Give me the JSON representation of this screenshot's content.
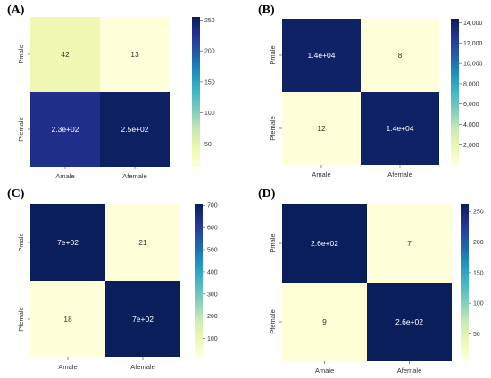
{
  "panels": [
    {
      "label": "(A)"
    },
    {
      "label": "(B)"
    },
    {
      "label": "(C)"
    },
    {
      "label": "(D)"
    }
  ],
  "colormap": {
    "name": "YlGnBu",
    "stops": [
      "#ffffd9",
      "#edf8b1",
      "#c7e9b4",
      "#7fcdbb",
      "#41b6c4",
      "#1d91c0",
      "#225ea8",
      "#253494",
      "#081d58"
    ]
  },
  "chart_data": [
    {
      "type": "heatmap",
      "panel": "(A)",
      "x_categories": [
        "Amale",
        "Afemale"
      ],
      "y_categories": [
        "Pmale",
        "Pfemale"
      ],
      "values": [
        [
          42,
          13
        ],
        [
          230,
          250
        ]
      ],
      "cell_labels": [
        [
          "42",
          "13"
        ],
        [
          "2.3e+02",
          "2.5e+02"
        ]
      ],
      "colorbar": {
        "min": 13,
        "max": 255,
        "ticks": [
          50,
          100,
          150,
          200,
          250
        ],
        "tick_labels": [
          "50",
          "100",
          "150",
          "200",
          "250"
        ]
      }
    },
    {
      "type": "heatmap",
      "panel": "(B)",
      "x_categories": [
        "Amale",
        "Afemale"
      ],
      "y_categories": [
        "Pmale",
        "Pfemale"
      ],
      "values": [
        [
          14000,
          8
        ],
        [
          12,
          14000
        ]
      ],
      "cell_labels": [
        [
          "1.4e+04",
          "8"
        ],
        [
          "12",
          "1.4e+04"
        ]
      ],
      "colorbar": {
        "min": 8,
        "max": 14400,
        "ticks": [
          2000,
          4000,
          6000,
          8000,
          10000,
          12000,
          14000
        ],
        "tick_labels": [
          "2,000",
          "4,000",
          "6,000",
          "8,000",
          "10,000",
          "12,000",
          "14,000"
        ]
      }
    },
    {
      "type": "heatmap",
      "panel": "(C)",
      "x_categories": [
        "Amale",
        "Afemale"
      ],
      "y_categories": [
        "Pmale",
        "Pfemale"
      ],
      "values": [
        [
          700,
          21
        ],
        [
          18,
          700
        ]
      ],
      "cell_labels": [
        [
          "7e+02",
          "21"
        ],
        [
          "18",
          "7e+02"
        ]
      ],
      "colorbar": {
        "min": 18,
        "max": 705,
        "ticks": [
          100,
          200,
          300,
          400,
          500,
          600,
          700
        ],
        "tick_labels": [
          "100",
          "200",
          "300",
          "400",
          "500",
          "600",
          "700"
        ]
      }
    },
    {
      "type": "heatmap",
      "panel": "(D)",
      "x_categories": [
        "Amale",
        "Afemale"
      ],
      "y_categories": [
        "Pmale",
        "Pfemale"
      ],
      "values": [
        [
          260,
          7
        ],
        [
          9,
          260
        ]
      ],
      "cell_labels": [
        [
          "2.6e+02",
          "7"
        ],
        [
          "9",
          "2.6e+02"
        ]
      ],
      "colorbar": {
        "min": 7,
        "max": 262,
        "ticks": [
          50,
          100,
          150,
          200,
          250
        ],
        "tick_labels": [
          "50",
          "100",
          "150",
          "200",
          "250"
        ]
      }
    }
  ]
}
